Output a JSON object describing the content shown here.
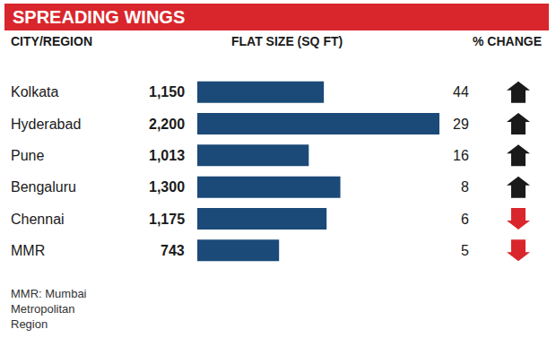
{
  "chart_data": {
    "type": "bar",
    "title": "SPREADING WINGS",
    "y_label": "CITY/REGION",
    "x_label": "FLAT SIZE (SQ FT)",
    "categories": [
      "Kolkata",
      "Hyderabad",
      "Pune",
      "Bengaluru",
      "Chennai",
      "MMR"
    ],
    "values": [
      1150,
      2200,
      1013,
      1300,
      1175,
      743
    ],
    "value_labels": [
      "1,150",
      "2,200",
      "1,013",
      "1,300",
      "1,175",
      "743"
    ],
    "color": "#1b4a78",
    "orientation": "horizontal",
    "data_labels": true,
    "tick_labels": "y",
    "grid": false,
    "xlim": [
      0,
      2200
    ],
    "change": {
      "label": "% CHANGE",
      "values": [
        44,
        29,
        16,
        8,
        6,
        5
      ],
      "direction": [
        "up",
        "up",
        "up",
        "up",
        "down",
        "down"
      ],
      "colors": [
        "#1a1a1a",
        "#1a1a1a",
        "#1a1a1a",
        "#1a1a1a",
        "#d9262c",
        "#d9262c"
      ]
    },
    "note": [
      "MMR: Mumbai",
      "Metropolitan",
      "Region"
    ]
  }
}
